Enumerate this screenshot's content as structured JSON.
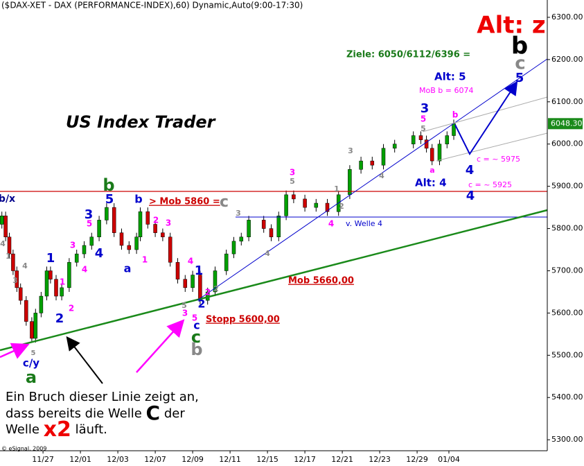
{
  "chart_data": {
    "type": "candlestick",
    "title": "($DAX-XET - DAX (PERFORMANCE-INDEX),60) Dynamic,Auto(9:00-17:30)",
    "x": [
      -1.1,
      -1.0,
      -0.9,
      -0.8,
      -0.7,
      -0.6,
      -0.45,
      -0.3,
      -0.2,
      -0.05,
      0.1,
      0.2,
      0.35,
      0.5,
      0.7,
      0.9,
      1.1,
      1.3,
      1.5,
      1.7,
      1.9,
      2.1,
      2.3,
      2.5,
      2.6,
      2.8,
      3.0,
      3.2,
      3.4,
      3.6,
      3.8,
      4.0,
      4.2,
      4.4,
      4.6,
      4.9,
      5.1,
      5.3,
      5.5,
      5.9,
      6.1,
      6.3,
      6.5,
      6.7,
      7.0,
      7.3,
      7.6,
      7.9,
      8.2,
      8.5,
      8.8,
      9.1,
      9.4,
      9.9,
      10.1,
      10.25,
      10.4,
      10.6,
      10.8,
      10.98
    ],
    "open": [
      5810,
      5830,
      5780,
      5740,
      5700,
      5660,
      5630,
      5580,
      5540,
      5600,
      5640,
      5700,
      5680,
      5640,
      5660,
      5720,
      5740,
      5760,
      5780,
      5820,
      5850,
      5790,
      5760,
      5750,
      5780,
      5840,
      5810,
      5790,
      5780,
      5720,
      5680,
      5660,
      5690,
      5630,
      5650,
      5700,
      5740,
      5770,
      5780,
      5820,
      5800,
      5780,
      5830,
      5880,
      5870,
      5850,
      5860,
      5840,
      5880,
      5940,
      5960,
      5950,
      5990,
      6000,
      6020,
      6010,
      5990,
      5960,
      6000,
      6020
    ],
    "high": [
      5840,
      5840,
      5790,
      5750,
      5710,
      5670,
      5640,
      5590,
      5610,
      5650,
      5710,
      5710,
      5690,
      5670,
      5730,
      5750,
      5770,
      5790,
      5830,
      5860,
      5860,
      5800,
      5770,
      5790,
      5850,
      5850,
      5820,
      5800,
      5790,
      5730,
      5690,
      5700,
      5700,
      5660,
      5710,
      5750,
      5780,
      5790,
      5830,
      5830,
      5810,
      5840,
      5890,
      5890,
      5880,
      5870,
      5870,
      5890,
      5950,
      5970,
      5970,
      6000,
      6010,
      6030,
      6030,
      6020,
      6000,
      6010,
      6030,
      6058
    ],
    "low": [
      5800,
      5770,
      5730,
      5690,
      5650,
      5620,
      5570,
      5530,
      5530,
      5590,
      5630,
      5670,
      5630,
      5630,
      5650,
      5710,
      5730,
      5750,
      5770,
      5810,
      5780,
      5750,
      5740,
      5740,
      5770,
      5800,
      5780,
      5770,
      5710,
      5670,
      5650,
      5650,
      5620,
      5620,
      5640,
      5690,
      5730,
      5760,
      5770,
      5790,
      5770,
      5770,
      5820,
      5860,
      5840,
      5840,
      5830,
      5830,
      5870,
      5930,
      5940,
      5940,
      5980,
      5990,
      6000,
      5980,
      5950,
      5950,
      5990,
      6010
    ],
    "close": [
      5830,
      5780,
      5740,
      5700,
      5660,
      5630,
      5580,
      5540,
      5600,
      5640,
      5700,
      5680,
      5640,
      5660,
      5720,
      5740,
      5760,
      5780,
      5820,
      5850,
      5790,
      5760,
      5750,
      5780,
      5840,
      5810,
      5790,
      5780,
      5720,
      5680,
      5660,
      5690,
      5630,
      5650,
      5700,
      5740,
      5770,
      5780,
      5820,
      5800,
      5780,
      5830,
      5880,
      5870,
      5850,
      5860,
      5840,
      5880,
      5940,
      5960,
      5950,
      5990,
      6000,
      6020,
      6010,
      5990,
      5960,
      6000,
      6020,
      6048.3
    ],
    "up_color": "#00a000",
    "down_color": "#cc0000",
    "wick_color": "#000000",
    "xlim": [
      -1.15,
      13.48
    ],
    "xticks": [
      {
        "value": 0,
        "label": "11/27"
      },
      {
        "value": 1,
        "label": "12/01"
      },
      {
        "value": 2,
        "label": "12/03"
      },
      {
        "value": 3,
        "label": "12/07"
      },
      {
        "value": 4,
        "label": "12/09"
      },
      {
        "value": 5,
        "label": "12/11"
      },
      {
        "value": 6,
        "label": "12/15"
      },
      {
        "value": 7,
        "label": "12/17"
      },
      {
        "value": 8,
        "label": "12/21"
      },
      {
        "value": 9,
        "label": "12/23"
      },
      {
        "value": 10,
        "label": "12/29"
      },
      {
        "value": 10.85,
        "label": "01/04"
      }
    ],
    "ylim": [
      5274,
      6341
    ],
    "yticks": [
      {
        "value": 5300,
        "label": "5300.00"
      },
      {
        "value": 5400,
        "label": "5400.00"
      },
      {
        "value": 5500,
        "label": "5500.00"
      },
      {
        "value": 5600,
        "label": "5600.00"
      },
      {
        "value": 5700,
        "label": "5700.00"
      },
      {
        "value": 5800,
        "label": "5800.00"
      },
      {
        "value": 5900,
        "label": "5900.00"
      },
      {
        "value": 6000,
        "label": "6000.00"
      },
      {
        "value": 6100,
        "label": "6100.00"
      },
      {
        "value": 6200,
        "label": "6200.00"
      },
      {
        "value": 6300,
        "label": "6300.00"
      }
    ],
    "last_price": {
      "value": 6048.3,
      "label": "6048.30"
    },
    "last_price_color": "#1a8a1a"
  },
  "notes": {
    "alt_z": "Alt: z",
    "ziele": "Ziele: 6050/6112/6396 =",
    "brand": "US Index Trader",
    "mob_5860": "> Mob 5860 =",
    "mob_5860_c": "c",
    "mob_5660": "Mob 5660,00",
    "stopp": "Stopp 5600,00",
    "welle4": "v. Welle 4",
    "mob_b": "MoB b = 6074",
    "alt5": "Alt: 5",
    "alt4": "Alt: 4",
    "c5975": "c = ~ 5975",
    "c5925": "c = ~ 5925",
    "copyright": "© eSignal, 2009"
  },
  "bottom_text": {
    "line1": "Ein Bruch dieser Linie zeigt an,",
    "line2a": "dass bereits die Welle",
    "line2b": "C",
    "line2c": "der",
    "line3a": "Welle",
    "line3b": "x2",
    "line3c": "läuft."
  },
  "wave_labels": [
    {
      "text": "b/x",
      "color": "#00008b"
    },
    {
      "text": "4",
      "color": "#888888"
    },
    {
      "text": "1",
      "color": "#888888"
    },
    {
      "text": "4",
      "color": "#888888"
    },
    {
      "text": "3",
      "color": "#888888"
    },
    {
      "text": "5",
      "color": "#888888"
    },
    {
      "text": "c/y",
      "color": "#0000cc"
    },
    {
      "text": "a",
      "color": "#1a7a1a"
    },
    {
      "text": "1",
      "color": "#0000cc"
    },
    {
      "text": "2",
      "color": "#0000cc"
    },
    {
      "text": "1",
      "color": "#ff00ff"
    },
    {
      "text": "2",
      "color": "#ff00ff"
    },
    {
      "text": "3",
      "color": "#ff00ff"
    },
    {
      "text": "4",
      "color": "#ff00ff"
    },
    {
      "text": "3",
      "color": "#0000cc"
    },
    {
      "text": "5",
      "color": "#ff00ff"
    },
    {
      "text": "4",
      "color": "#0000cc"
    },
    {
      "text": "5",
      "color": "#0000cc"
    },
    {
      "text": "b",
      "color": "#1a7a1a"
    },
    {
      "text": "a",
      "color": "#0000cc"
    },
    {
      "text": "b",
      "color": "#0000cc"
    },
    {
      "text": "1",
      "color": "#ff00ff"
    },
    {
      "text": "2",
      "color": "#ff00ff"
    },
    {
      "text": "3",
      "color": "#ff00ff"
    },
    {
      "text": "4",
      "color": "#ff00ff"
    },
    {
      "text": "1",
      "color": "#0000cc"
    },
    {
      "text": "2",
      "color": "#0000cc"
    },
    {
      "text": "2",
      "color": "#ff00ff"
    },
    {
      "text": "2",
      "color": "#888888"
    },
    {
      "text": "5",
      "color": "#888888"
    },
    {
      "text": "3",
      "color": "#ff00ff"
    },
    {
      "text": "5",
      "color": "#ff00ff"
    },
    {
      "text": "c",
      "color": "#0000cc"
    },
    {
      "text": "c",
      "color": "#1a7a1a"
    },
    {
      "text": "b",
      "color": "#888888"
    },
    {
      "text": "3",
      "color": "#888888"
    },
    {
      "text": "4",
      "color": "#888888"
    },
    {
      "text": "3",
      "color": "#ff00ff"
    },
    {
      "text": "5",
      "color": "#888888"
    },
    {
      "text": "1",
      "color": "#888888"
    },
    {
      "text": "2",
      "color": "#888888"
    },
    {
      "text": "3",
      "color": "#888888"
    },
    {
      "text": "4",
      "color": "#888888"
    },
    {
      "text": "4",
      "color": "#ff00ff"
    },
    {
      "text": "3",
      "color": "#0000cc"
    },
    {
      "text": "5",
      "color": "#ff00ff"
    },
    {
      "text": "5",
      "color": "#888888"
    },
    {
      "text": "b",
      "color": "#ff00ff"
    },
    {
      "text": "a",
      "color": "#ff00ff"
    },
    {
      "text": "4",
      "color": "#0000cc"
    },
    {
      "text": "4",
      "color": "#0000cc"
    },
    {
      "text": "b",
      "color": "#000000"
    },
    {
      "text": "c",
      "color": "#888888"
    },
    {
      "text": "5",
      "color": "#0000cc"
    }
  ]
}
